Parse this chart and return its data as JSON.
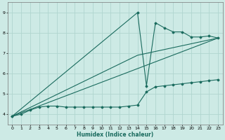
{
  "xlabel": "Humidex (Indice chaleur)",
  "bg_color": "#cdeae5",
  "grid_color": "#b0d5cf",
  "line_color": "#1a6b5e",
  "xlim": [
    -0.5,
    23.5
  ],
  "ylim": [
    3.5,
    9.5
  ],
  "xticks": [
    0,
    1,
    2,
    3,
    4,
    5,
    6,
    7,
    8,
    9,
    10,
    11,
    12,
    13,
    14,
    15,
    16,
    17,
    18,
    19,
    20,
    21,
    22,
    23
  ],
  "yticks": [
    4,
    5,
    6,
    7,
    8,
    9
  ],
  "series_dots_x": [
    0,
    1,
    2,
    3,
    4,
    5,
    6,
    7,
    8,
    9,
    10,
    11,
    12,
    13,
    14,
    15,
    16,
    17,
    18,
    19,
    20,
    21,
    22,
    23
  ],
  "series_dots_y": [
    3.9,
    4.0,
    4.2,
    4.35,
    4.4,
    4.4,
    4.35,
    4.35,
    4.35,
    4.35,
    4.35,
    4.35,
    4.35,
    4.4,
    4.45,
    5.1,
    5.35,
    5.4,
    5.45,
    5.5,
    5.55,
    5.6,
    5.65,
    5.7
  ],
  "series_line1_x": [
    0,
    23
  ],
  "series_line1_y": [
    3.9,
    7.75
  ],
  "series_line2_x": [
    0,
    14,
    23
  ],
  "series_line2_y": [
    3.9,
    6.9,
    7.75
  ],
  "series_peak_x": [
    0,
    14,
    15,
    16,
    17,
    18,
    19,
    20,
    21,
    22,
    23
  ],
  "series_peak_y": [
    3.9,
    9.0,
    5.4,
    8.5,
    8.25,
    8.05,
    8.05,
    7.8,
    7.8,
    7.85,
    7.75
  ]
}
